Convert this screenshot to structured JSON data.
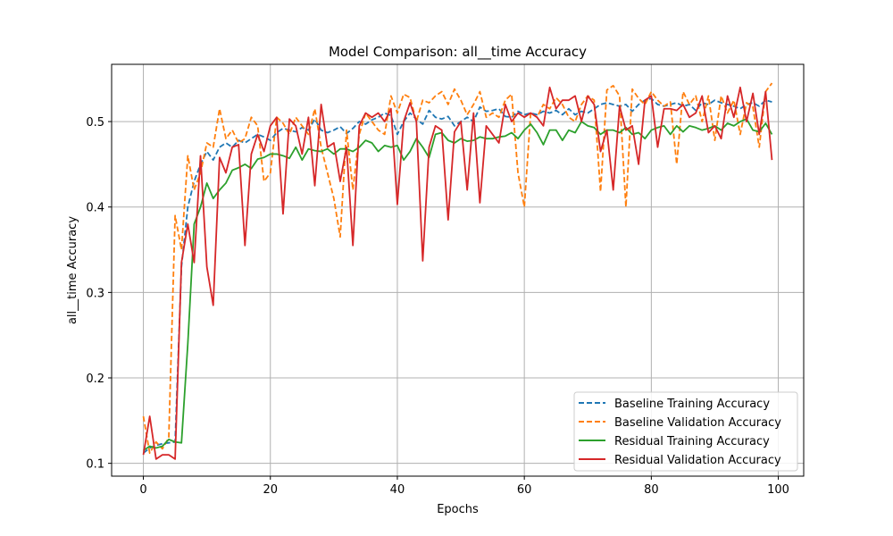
{
  "chart_data": {
    "type": "line",
    "title": "Model Comparison: all__time Accuracy",
    "xlabel": "Epochs",
    "ylabel": "all__time Accuracy",
    "xlim": [
      -5,
      104
    ],
    "ylim": [
      0.085,
      0.567
    ],
    "xticks": [
      0,
      20,
      40,
      60,
      80,
      100
    ],
    "yticks": [
      0.1,
      0.2,
      0.3,
      0.4,
      0.5
    ],
    "ytick_labels": [
      "0.1",
      "0.2",
      "0.3",
      "0.4",
      "0.5"
    ],
    "grid": true,
    "legend_position": "lower-right",
    "x": [
      0,
      1,
      2,
      3,
      4,
      5,
      6,
      7,
      8,
      9,
      10,
      11,
      12,
      13,
      14,
      15,
      16,
      17,
      18,
      19,
      20,
      21,
      22,
      23,
      24,
      25,
      26,
      27,
      28,
      29,
      30,
      31,
      32,
      33,
      34,
      35,
      36,
      37,
      38,
      39,
      40,
      41,
      42,
      43,
      44,
      45,
      46,
      47,
      48,
      49,
      50,
      51,
      52,
      53,
      54,
      55,
      56,
      57,
      58,
      59,
      60,
      61,
      62,
      63,
      64,
      65,
      66,
      67,
      68,
      69,
      70,
      71,
      72,
      73,
      74,
      75,
      76,
      77,
      78,
      79,
      80,
      81,
      82,
      83,
      84,
      85,
      86,
      87,
      88,
      89,
      90,
      91,
      92,
      93,
      94,
      95,
      96,
      97,
      98,
      99
    ],
    "series": [
      {
        "name": "Baseline Training Accuracy",
        "color": "#1f77b4",
        "style": "dashed",
        "values": [
          0.112,
          0.118,
          0.121,
          0.123,
          0.124,
          0.125,
          0.33,
          0.4,
          0.43,
          0.45,
          0.465,
          0.455,
          0.47,
          0.475,
          0.47,
          0.478,
          0.475,
          0.48,
          0.485,
          0.482,
          0.478,
          0.487,
          0.492,
          0.49,
          0.488,
          0.493,
          0.49,
          0.503,
          0.49,
          0.487,
          0.49,
          0.494,
          0.486,
          0.492,
          0.5,
          0.497,
          0.502,
          0.505,
          0.51,
          0.507,
          0.485,
          0.5,
          0.51,
          0.503,
          0.497,
          0.513,
          0.505,
          0.503,
          0.506,
          0.495,
          0.5,
          0.505,
          0.5,
          0.517,
          0.512,
          0.513,
          0.515,
          0.506,
          0.505,
          0.512,
          0.508,
          0.51,
          0.508,
          0.512,
          0.51,
          0.513,
          0.508,
          0.515,
          0.508,
          0.512,
          0.51,
          0.515,
          0.52,
          0.522,
          0.52,
          0.518,
          0.52,
          0.512,
          0.52,
          0.525,
          0.527,
          0.52,
          0.518,
          0.52,
          0.522,
          0.518,
          0.52,
          0.513,
          0.522,
          0.52,
          0.525,
          0.522,
          0.52,
          0.518,
          0.515,
          0.52,
          0.522,
          0.518,
          0.525,
          0.523
        ]
      },
      {
        "name": "Baseline Validation Accuracy",
        "color": "#ff7f0e",
        "style": "dashed",
        "values": [
          0.155,
          0.112,
          0.125,
          0.117,
          0.13,
          0.39,
          0.35,
          0.46,
          0.42,
          0.44,
          0.475,
          0.47,
          0.515,
          0.48,
          0.49,
          0.475,
          0.48,
          0.505,
          0.495,
          0.43,
          0.44,
          0.505,
          0.498,
          0.485,
          0.505,
          0.495,
          0.485,
          0.515,
          0.47,
          0.44,
          0.41,
          0.365,
          0.49,
          0.42,
          0.485,
          0.51,
          0.5,
          0.49,
          0.485,
          0.53,
          0.51,
          0.532,
          0.528,
          0.5,
          0.525,
          0.522,
          0.53,
          0.535,
          0.52,
          0.538,
          0.525,
          0.508,
          0.52,
          0.535,
          0.505,
          0.51,
          0.505,
          0.525,
          0.532,
          0.44,
          0.4,
          0.51,
          0.505,
          0.52,
          0.515,
          0.528,
          0.52,
          0.505,
          0.5,
          0.52,
          0.53,
          0.525,
          0.418,
          0.537,
          0.542,
          0.53,
          0.4,
          0.538,
          0.527,
          0.52,
          0.535,
          0.525,
          0.518,
          0.523,
          0.45,
          0.535,
          0.52,
          0.53,
          0.5,
          0.53,
          0.478,
          0.53,
          0.51,
          0.525,
          0.485,
          0.522,
          0.517,
          0.47,
          0.535,
          0.545
        ]
      },
      {
        "name": "Residual Training Accuracy",
        "color": "#2ca02c",
        "style": "solid",
        "values": [
          0.115,
          0.12,
          0.118,
          0.12,
          0.128,
          0.125,
          0.124,
          0.24,
          0.38,
          0.4,
          0.428,
          0.41,
          0.42,
          0.428,
          0.443,
          0.446,
          0.45,
          0.445,
          0.456,
          0.458,
          0.462,
          0.462,
          0.46,
          0.457,
          0.47,
          0.455,
          0.468,
          0.466,
          0.465,
          0.468,
          0.462,
          0.468,
          0.468,
          0.465,
          0.47,
          0.478,
          0.475,
          0.465,
          0.472,
          0.47,
          0.472,
          0.455,
          0.465,
          0.48,
          0.47,
          0.458,
          0.485,
          0.487,
          0.478,
          0.475,
          0.48,
          0.477,
          0.478,
          0.482,
          0.48,
          0.48,
          0.482,
          0.483,
          0.487,
          0.48,
          0.49,
          0.497,
          0.487,
          0.473,
          0.49,
          0.49,
          0.478,
          0.49,
          0.487,
          0.5,
          0.495,
          0.493,
          0.485,
          0.49,
          0.49,
          0.487,
          0.493,
          0.485,
          0.487,
          0.48,
          0.49,
          0.493,
          0.495,
          0.485,
          0.495,
          0.488,
          0.495,
          0.493,
          0.49,
          0.492,
          0.495,
          0.49,
          0.498,
          0.495,
          0.5,
          0.503,
          0.49,
          0.488,
          0.498,
          0.485
        ]
      },
      {
        "name": "Residual Validation Accuracy",
        "color": "#d62728",
        "style": "solid",
        "values": [
          0.11,
          0.155,
          0.105,
          0.11,
          0.11,
          0.105,
          0.335,
          0.38,
          0.335,
          0.46,
          0.33,
          0.285,
          0.458,
          0.44,
          0.47,
          0.473,
          0.355,
          0.462,
          0.485,
          0.465,
          0.495,
          0.505,
          0.392,
          0.503,
          0.495,
          0.462,
          0.505,
          0.425,
          0.52,
          0.47,
          0.475,
          0.43,
          0.47,
          0.355,
          0.495,
          0.51,
          0.505,
          0.51,
          0.5,
          0.515,
          0.403,
          0.5,
          0.522,
          0.5,
          0.337,
          0.47,
          0.495,
          0.49,
          0.385,
          0.488,
          0.5,
          0.42,
          0.51,
          0.405,
          0.495,
          0.485,
          0.475,
          0.52,
          0.5,
          0.51,
          0.505,
          0.51,
          0.505,
          0.495,
          0.54,
          0.515,
          0.525,
          0.525,
          0.53,
          0.5,
          0.53,
          0.52,
          0.465,
          0.49,
          0.42,
          0.518,
          0.49,
          0.495,
          0.45,
          0.525,
          0.53,
          0.47,
          0.515,
          0.515,
          0.513,
          0.52,
          0.505,
          0.51,
          0.53,
          0.487,
          0.495,
          0.48,
          0.53,
          0.505,
          0.54,
          0.5,
          0.533,
          0.485,
          0.535,
          0.455
        ]
      }
    ]
  }
}
